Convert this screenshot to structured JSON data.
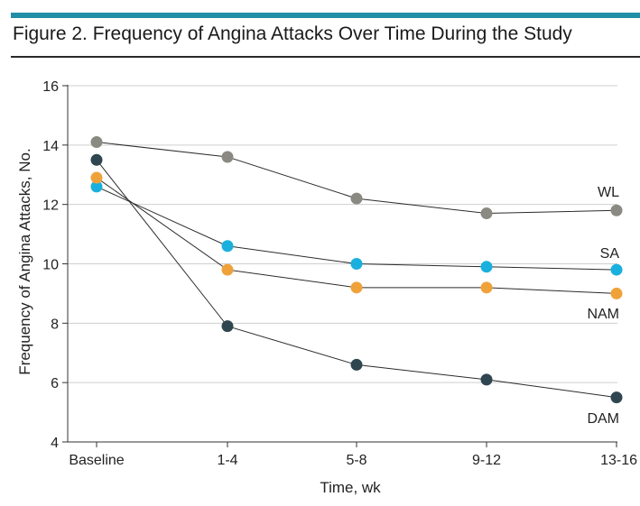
{
  "chart_data": {
    "type": "line",
    "title": "Figure 2. Frequency of Angina Attacks Over Time During the Study",
    "xlabel": "Time, wk",
    "ylabel": "Frequency of Angina Attacks, No.",
    "categories": [
      "Baseline",
      "1-4",
      "5-8",
      "9-12",
      "13-16"
    ],
    "ylim": [
      4,
      16
    ],
    "yticks": [
      4,
      6,
      8,
      10,
      12,
      14,
      16
    ],
    "grid": true,
    "series": [
      {
        "name": "WL",
        "color": "#8a8a82",
        "values": [
          14.1,
          13.6,
          12.2,
          11.7,
          11.8
        ]
      },
      {
        "name": "SA",
        "color": "#1ab0de",
        "values": [
          12.6,
          10.6,
          10.0,
          9.9,
          9.8
        ]
      },
      {
        "name": "NAM",
        "color": "#f0a23a",
        "values": [
          12.9,
          9.8,
          9.2,
          9.2,
          9.0
        ]
      },
      {
        "name": "DAM",
        "color": "#2f4650",
        "values": [
          13.5,
          7.9,
          6.6,
          6.1,
          5.5
        ]
      }
    ]
  }
}
